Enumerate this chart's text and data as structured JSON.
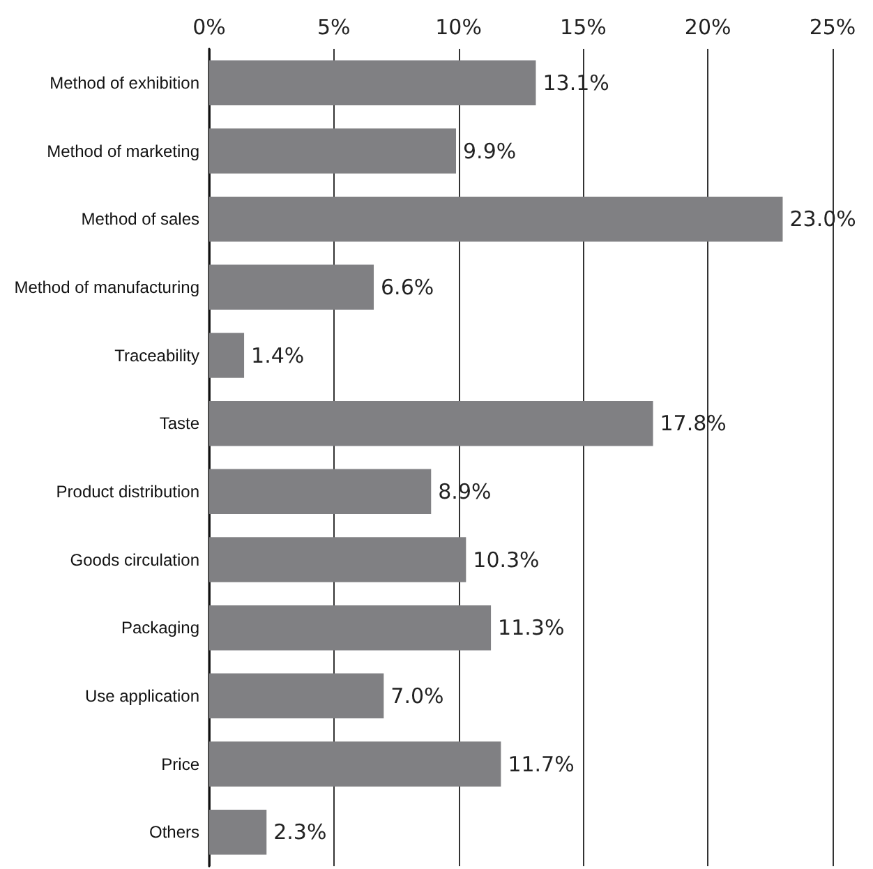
{
  "chart_data": {
    "type": "bar",
    "orientation": "horizontal",
    "categories": [
      "Method of exhibition",
      "Method of marketing",
      "Method of sales",
      "Method of manufacturing",
      "Traceability",
      "Taste",
      "Product distribution",
      "Goods circulation",
      "Packaging",
      "Use application",
      "Price",
      "Others"
    ],
    "values": [
      13.1,
      9.9,
      23.0,
      6.6,
      1.4,
      17.8,
      8.9,
      10.3,
      11.3,
      7.0,
      11.7,
      2.3
    ],
    "value_labels": [
      "13.1%",
      "9.9%",
      "23.0%",
      "6.6%",
      "1.4%",
      "17.8%",
      "8.9%",
      "10.3%",
      "11.3%",
      "7.0%",
      "11.7%",
      "2.3%"
    ],
    "color": "#808083",
    "xlim": [
      0,
      25
    ],
    "xticks": [
      {
        "value": 0,
        "label": "0%"
      },
      {
        "value": 5,
        "label": "5%"
      },
      {
        "value": 10,
        "label": "10%"
      },
      {
        "value": 15,
        "label": "15%"
      },
      {
        "value": 20,
        "label": "20%"
      },
      {
        "value": 25,
        "label": "25%"
      }
    ],
    "grid": "x"
  }
}
